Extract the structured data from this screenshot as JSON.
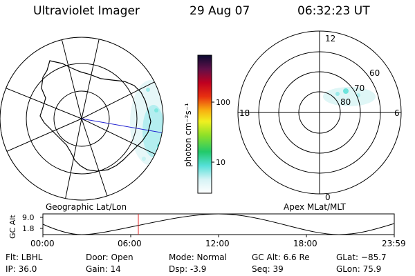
{
  "header": {
    "title": "Ultraviolet Imager",
    "date": "29 Aug 07",
    "time": "06:32:23 UT"
  },
  "left_panel": {
    "caption": "Geographic Lat/Lon"
  },
  "right_panel": {
    "caption": "Apex MLat/MLT",
    "mlt_labels": {
      "top": "12",
      "left": "18",
      "right": "6",
      "bottom": "0"
    },
    "lat_labels": [
      "60",
      "70",
      "80"
    ]
  },
  "colorbar": {
    "label": "photon cm⁻²s⁻¹",
    "ticks": [
      "100",
      "10"
    ]
  },
  "altitude_plot": {
    "ylabel": "GC Alt",
    "yticks": [
      "9.0",
      "1.8"
    ],
    "xticks": [
      "00:00",
      "06:00",
      "12:00",
      "18:00",
      "23:59"
    ]
  },
  "status": {
    "flt": "Flt: LBHL",
    "ip": "IP: 36.0",
    "door": "Door: Open",
    "gain": "Gain: 14",
    "mode": "Mode: Normal",
    "dsp": "Dsp:    -3.9",
    "gc_alt": "GC Alt: 6.6 Re",
    "seq": "Seq: 39",
    "glat": "GLat: −85.7",
    "glon": "GLon:  75.9"
  }
}
